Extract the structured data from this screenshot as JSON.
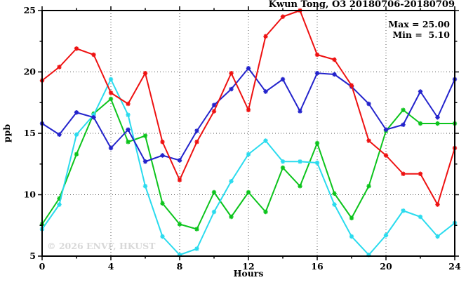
{
  "title": "Kwun Tong, O3 20180706-20180709",
  "annotation": {
    "max_label": "Max = 25.00",
    "min_label": "Min =  5.10"
  },
  "watermark": "© 2026 ENVF, HKUST",
  "colors": {
    "series_red": "#ee1111",
    "series_blue": "#2323cc",
    "series_green": "#0cc41c",
    "series_cyan": "#2adbee",
    "grid": "#555555",
    "frame": "#000000",
    "watermark": "#d8d8d8"
  },
  "chart_data": {
    "type": "line",
    "title": "Kwun Tong, O3 20180706-20180709",
    "xlabel": "Hours",
    "ylabel": "ppb",
    "xlim": [
      0,
      24
    ],
    "ylim": [
      5,
      25
    ],
    "xticks": [
      0,
      4,
      8,
      12,
      16,
      20,
      24
    ],
    "yticks": [
      5,
      10,
      15,
      20,
      25
    ],
    "x_minor_step": 2,
    "y_minor_step": 2.5,
    "grid": "dotted-at-major-ticks",
    "legend_position": "none",
    "marker": "asterisk",
    "annotations": {
      "max": 25.0,
      "min": 5.1
    },
    "x": [
      0,
      1,
      2,
      3,
      4,
      5,
      6,
      7,
      8,
      9,
      10,
      11,
      12,
      13,
      14,
      15,
      16,
      17,
      18,
      19,
      20,
      21,
      22,
      23,
      24
    ],
    "series": [
      {
        "name": "red",
        "color": "#ee1111",
        "values": [
          19.3,
          20.4,
          21.9,
          21.4,
          18.3,
          17.4,
          19.9,
          14.3,
          11.2,
          14.3,
          16.8,
          19.9,
          16.9,
          22.9,
          24.5,
          25.0,
          21.4,
          21.0,
          18.9,
          14.4,
          13.2,
          11.7,
          11.7,
          9.2,
          13.8
        ]
      },
      {
        "name": "blue",
        "color": "#2323cc",
        "values": [
          15.8,
          14.9,
          16.7,
          16.3,
          13.8,
          15.3,
          12.7,
          13.2,
          12.8,
          15.2,
          17.3,
          18.6,
          20.3,
          18.4,
          19.4,
          16.8,
          19.9,
          19.8,
          18.8,
          17.4,
          15.3,
          15.7,
          18.4,
          16.3,
          19.4
        ]
      },
      {
        "name": "green",
        "color": "#0cc41c",
        "values": [
          7.6,
          9.7,
          13.3,
          16.6,
          17.8,
          14.3,
          14.8,
          9.3,
          7.6,
          7.2,
          10.2,
          8.2,
          10.2,
          8.6,
          12.2,
          10.7,
          14.2,
          10.1,
          8.1,
          10.7,
          15.2,
          16.9,
          15.8,
          15.8,
          15.8
        ]
      },
      {
        "name": "cyan",
        "color": "#2adbee",
        "values": [
          7.2,
          9.2,
          14.9,
          16.5,
          19.4,
          16.5,
          10.7,
          6.6,
          5.1,
          5.6,
          8.6,
          11.1,
          13.3,
          14.4,
          12.7,
          12.7,
          12.6,
          9.2,
          6.6,
          5.1,
          6.7,
          8.7,
          8.2,
          6.6,
          7.7
        ]
      }
    ]
  }
}
